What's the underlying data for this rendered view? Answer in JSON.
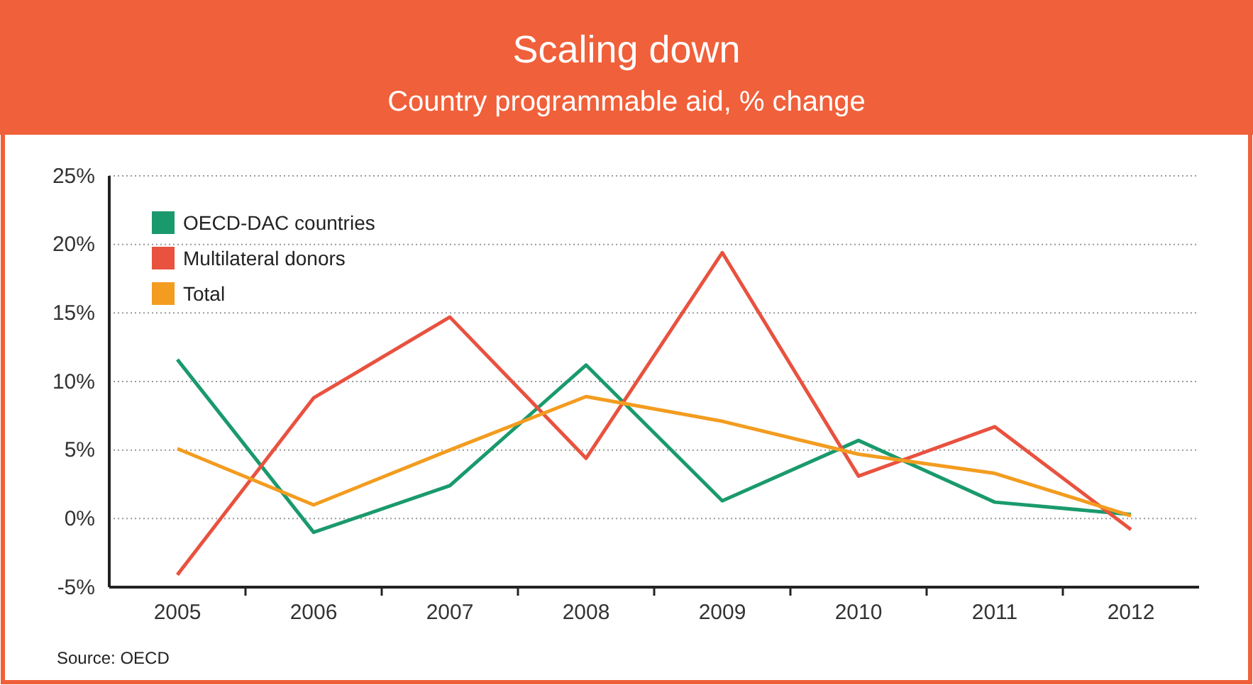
{
  "chart_data": {
    "type": "line",
    "title": "Scaling down",
    "subtitle": "Country programmable aid, % change",
    "categories": [
      "2005",
      "2006",
      "2007",
      "2008",
      "2009",
      "2010",
      "2011",
      "2012"
    ],
    "series": [
      {
        "name": "OECD-DAC countries",
        "color": "#1a9a6c",
        "values": [
          11.6,
          -1.0,
          2.4,
          11.2,
          1.3,
          5.7,
          1.2,
          0.3
        ]
      },
      {
        "name": "Multilateral donors",
        "color": "#e8523f",
        "values": [
          -4.1,
          8.8,
          14.7,
          4.4,
          19.4,
          3.1,
          6.7,
          -0.8
        ]
      },
      {
        "name": "Total",
        "color": "#f39c1f",
        "values": [
          5.1,
          1.0,
          5.0,
          8.9,
          7.1,
          4.7,
          3.3,
          0.2
        ]
      }
    ],
    "ylim": [
      -5,
      25
    ],
    "yticks": [
      {
        "value": -5,
        "label": "-5%"
      },
      {
        "value": 0,
        "label": "0%"
      },
      {
        "value": 5,
        "label": "5%"
      },
      {
        "value": 10,
        "label": "10%"
      },
      {
        "value": 15,
        "label": "15%"
      },
      {
        "value": 20,
        "label": "20%"
      },
      {
        "value": 25,
        "label": "25%"
      }
    ],
    "grid": "y",
    "legend": "top left",
    "line_style": "solid",
    "marker": "none",
    "annotations": [
      "Source: OECD"
    ]
  }
}
